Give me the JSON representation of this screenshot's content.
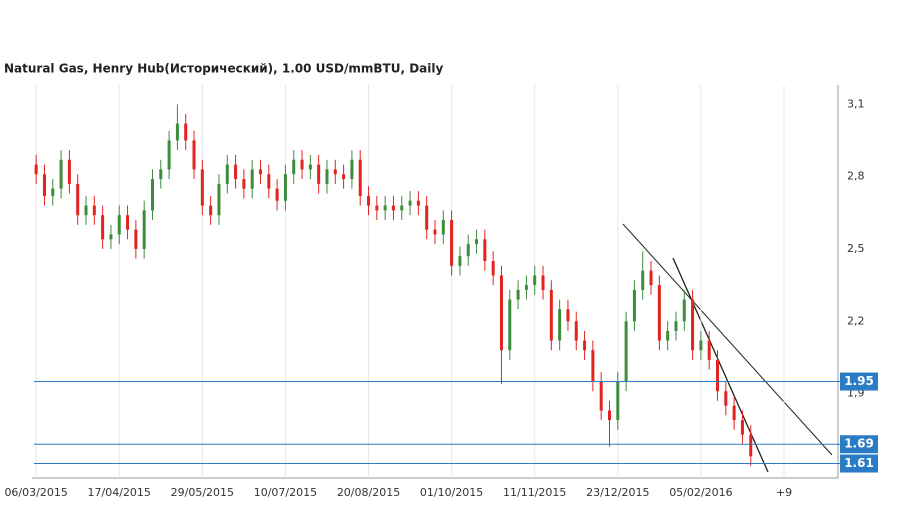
{
  "chart_data": {
    "type": "candlestick",
    "title": "Natural Gas, Henry Hub(Исторический), 1.00 USD/mmBTU, Daily",
    "categories": [
      "06/03/2015",
      null,
      null,
      null,
      null,
      null,
      null,
      null,
      null,
      null,
      "17/04/2015",
      null,
      null,
      null,
      null,
      null,
      null,
      null,
      null,
      null,
      "29/05/2015",
      null,
      null,
      null,
      null,
      null,
      null,
      null,
      null,
      null,
      "10/07/2015",
      null,
      null,
      null,
      null,
      null,
      null,
      null,
      null,
      null,
      "20/08/2015",
      null,
      null,
      null,
      null,
      null,
      null,
      null,
      null,
      null,
      "01/10/2015",
      null,
      null,
      null,
      null,
      null,
      null,
      null,
      null,
      null,
      "11/11/2015",
      null,
      null,
      null,
      null,
      null,
      null,
      null,
      null,
      null,
      "23/12/2015",
      null,
      null,
      null,
      null,
      null,
      null,
      null,
      null,
      null,
      "05/02/2016",
      null,
      null,
      null,
      null,
      null,
      null,
      null,
      null,
      null,
      "+9",
      null,
      null,
      null,
      null,
      null,
      null
    ],
    "open": [
      2.85,
      2.81,
      2.72,
      2.75,
      2.87,
      2.77,
      2.64,
      2.68,
      2.64,
      2.54,
      2.56,
      2.64,
      2.58,
      2.5,
      2.66,
      2.79,
      2.83,
      2.95,
      3.02,
      2.95,
      2.83,
      2.68,
      2.64,
      2.77,
      2.85,
      2.79,
      2.75,
      2.83,
      2.81,
      2.75,
      2.7,
      2.81,
      2.87,
      2.83,
      2.85,
      2.77,
      2.83,
      2.81,
      2.79,
      2.87,
      2.72,
      2.68,
      2.66,
      2.68,
      2.66,
      2.68,
      2.7,
      2.68,
      2.58,
      2.56,
      2.62,
      2.43,
      2.47,
      2.52,
      2.54,
      2.45,
      2.39,
      2.08,
      2.29,
      2.33,
      2.35,
      2.39,
      2.33,
      2.12,
      2.25,
      2.2,
      2.12,
      2.08,
      1.95,
      1.83,
      1.79,
      1.95,
      2.2,
      2.33,
      2.41,
      2.35,
      2.12,
      2.16,
      2.2,
      2.29,
      2.08,
      2.12,
      2.04,
      1.91,
      1.85,
      1.79,
      1.73,
      null,
      null,
      null,
      null,
      null,
      null,
      null,
      null,
      null,
      null
    ],
    "high": [
      2.89,
      2.85,
      2.79,
      2.91,
      2.91,
      2.81,
      2.72,
      2.72,
      2.68,
      2.6,
      2.68,
      2.68,
      2.62,
      2.7,
      2.83,
      2.87,
      2.99,
      3.1,
      3.06,
      2.99,
      2.87,
      2.72,
      2.81,
      2.89,
      2.89,
      2.83,
      2.87,
      2.87,
      2.85,
      2.79,
      2.85,
      2.91,
      2.91,
      2.89,
      2.89,
      2.87,
      2.87,
      2.85,
      2.91,
      2.91,
      2.76,
      2.72,
      2.72,
      2.72,
      2.72,
      2.74,
      2.74,
      2.72,
      2.62,
      2.66,
      2.66,
      2.51,
      2.56,
      2.58,
      2.58,
      2.49,
      2.43,
      2.33,
      2.37,
      2.39,
      2.43,
      2.43,
      2.37,
      2.29,
      2.29,
      2.24,
      2.16,
      2.12,
      1.99,
      1.87,
      1.99,
      2.24,
      2.37,
      2.49,
      2.45,
      2.39,
      2.2,
      2.24,
      2.33,
      2.33,
      2.16,
      2.16,
      2.08,
      1.95,
      1.89,
      1.83,
      1.77,
      null,
      null,
      null,
      null,
      null,
      null,
      null,
      null,
      null,
      null
    ],
    "low": [
      2.77,
      2.68,
      2.68,
      2.71,
      2.73,
      2.6,
      2.6,
      2.6,
      2.5,
      2.5,
      2.52,
      2.54,
      2.46,
      2.46,
      2.62,
      2.75,
      2.79,
      2.91,
      2.91,
      2.79,
      2.64,
      2.6,
      2.6,
      2.73,
      2.75,
      2.71,
      2.71,
      2.77,
      2.71,
      2.66,
      2.66,
      2.77,
      2.79,
      2.79,
      2.73,
      2.73,
      2.77,
      2.75,
      2.75,
      2.68,
      2.64,
      2.62,
      2.62,
      2.62,
      2.62,
      2.64,
      2.64,
      2.54,
      2.52,
      2.52,
      2.39,
      2.39,
      2.43,
      2.48,
      2.41,
      2.35,
      1.94,
      2.04,
      2.25,
      2.29,
      2.31,
      2.29,
      2.08,
      2.08,
      2.16,
      2.08,
      2.04,
      1.91,
      1.79,
      1.68,
      1.75,
      1.91,
      2.16,
      2.29,
      2.31,
      2.08,
      2.08,
      2.12,
      2.16,
      2.04,
      2.04,
      2.0,
      1.87,
      1.81,
      1.75,
      1.69,
      1.6,
      null,
      null,
      null,
      null,
      null,
      null,
      null,
      null,
      null,
      null
    ],
    "close": [
      2.81,
      2.72,
      2.75,
      2.87,
      2.77,
      2.64,
      2.68,
      2.64,
      2.54,
      2.56,
      2.64,
      2.58,
      2.5,
      2.66,
      2.79,
      2.83,
      2.95,
      3.02,
      2.95,
      2.83,
      2.68,
      2.64,
      2.77,
      2.85,
      2.79,
      2.75,
      2.83,
      2.81,
      2.75,
      2.7,
      2.81,
      2.87,
      2.83,
      2.85,
      2.77,
      2.83,
      2.81,
      2.79,
      2.87,
      2.72,
      2.68,
      2.66,
      2.68,
      2.66,
      2.68,
      2.7,
      2.68,
      2.58,
      2.56,
      2.62,
      2.43,
      2.47,
      2.52,
      2.54,
      2.45,
      2.39,
      2.08,
      2.29,
      2.33,
      2.35,
      2.39,
      2.33,
      2.12,
      2.25,
      2.2,
      2.12,
      2.08,
      1.95,
      1.83,
      1.79,
      1.95,
      2.2,
      2.33,
      2.41,
      2.35,
      2.12,
      2.16,
      2.2,
      2.29,
      2.08,
      2.12,
      2.04,
      1.91,
      1.85,
      1.79,
      1.73,
      1.64,
      null,
      null,
      null,
      null,
      null,
      null,
      null,
      null,
      null,
      null
    ],
    "up_color": "#3c8c3c",
    "down_color": "#e3231f",
    "ylim": [
      1.55,
      3.18
    ],
    "yticks": [
      {
        "value": 3.1,
        "label": "3,1"
      },
      {
        "value": 2.8,
        "label": "2,8"
      },
      {
        "value": 2.5,
        "label": "2,5"
      },
      {
        "value": 2.2,
        "label": "2,2"
      },
      {
        "value": 1.9,
        "label": "1,9"
      }
    ],
    "levels": [
      {
        "value": 1.95,
        "label": "1.95"
      },
      {
        "value": 1.69,
        "label": "1.69"
      },
      {
        "value": 1.61,
        "label": "1.61"
      }
    ],
    "level_color": "#2a7cc7",
    "grid": true
  }
}
